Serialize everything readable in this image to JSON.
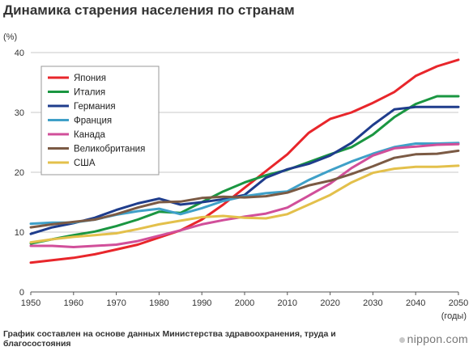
{
  "header": {
    "title": "Динамика старения населения по странам"
  },
  "footer": {
    "source": "График составлен на основе данных Министерства здравоохранения, труда и благосостояния",
    "brand": "nippon.com"
  },
  "chart_data": {
    "type": "line",
    "title": "Динамика старения населения по странам",
    "ylabel": "(%)",
    "xlabel": "(годы)",
    "ylim": [
      0,
      40
    ],
    "xlim": [
      1950,
      2050
    ],
    "xticks": [
      1950,
      1960,
      1970,
      1980,
      1990,
      2000,
      2010,
      2020,
      2030,
      2040,
      2050
    ],
    "yticks": [
      0,
      10,
      20,
      30,
      40
    ],
    "grid": "horizontal",
    "legend_position": "top-left",
    "series": [
      {
        "name": "Япония",
        "color": "#e8262b",
        "x": [
          1950,
          1955,
          1960,
          1965,
          1970,
          1975,
          1980,
          1985,
          1990,
          1995,
          2000,
          2005,
          2010,
          2015,
          2020,
          2025,
          2030,
          2035,
          2040,
          2045,
          2050
        ],
        "y": [
          4.9,
          5.3,
          5.7,
          6.3,
          7.1,
          7.9,
          9.1,
          10.3,
          12.1,
          14.6,
          17.4,
          20.2,
          23.0,
          26.6,
          28.9,
          30.0,
          31.6,
          33.4,
          36.1,
          37.7,
          38.8
        ]
      },
      {
        "name": "Италия",
        "color": "#1a9641",
        "x": [
          1950,
          1955,
          1960,
          1965,
          1970,
          1975,
          1980,
          1985,
          1990,
          1995,
          2000,
          2005,
          2010,
          2015,
          2020,
          2025,
          2030,
          2035,
          2040,
          2045,
          2050
        ],
        "y": [
          8.1,
          8.8,
          9.5,
          10.1,
          11.0,
          12.1,
          13.4,
          13.2,
          15.0,
          16.8,
          18.3,
          19.5,
          20.4,
          21.7,
          23.0,
          24.2,
          26.3,
          29.2,
          31.4,
          32.7,
          32.7
        ]
      },
      {
        "name": "Германия",
        "color": "#1f3d8c",
        "x": [
          1950,
          1955,
          1960,
          1965,
          1970,
          1975,
          1980,
          1985,
          1990,
          1995,
          2000,
          2005,
          2010,
          2015,
          2020,
          2025,
          2030,
          2035,
          2040,
          2045,
          2050
        ],
        "y": [
          9.7,
          10.8,
          11.5,
          12.4,
          13.7,
          14.8,
          15.6,
          14.6,
          15.0,
          15.5,
          16.2,
          19.1,
          20.5,
          21.4,
          22.8,
          24.9,
          27.9,
          30.5,
          30.9,
          30.9,
          30.9
        ]
      },
      {
        "name": "Франция",
        "color": "#3fa0c8",
        "x": [
          1950,
          1955,
          1960,
          1965,
          1970,
          1975,
          1980,
          1985,
          1990,
          1995,
          2000,
          2005,
          2010,
          2015,
          2020,
          2025,
          2030,
          2035,
          2040,
          2045,
          2050
        ],
        "y": [
          11.4,
          11.6,
          11.6,
          12.1,
          12.9,
          13.5,
          13.9,
          13.0,
          14.0,
          15.2,
          16.0,
          16.5,
          16.8,
          18.7,
          20.3,
          21.8,
          23.1,
          24.2,
          24.8,
          24.8,
          24.9
        ]
      },
      {
        "name": "Канада",
        "color": "#d14f9a",
        "x": [
          1950,
          1955,
          1960,
          1965,
          1970,
          1975,
          1980,
          1985,
          1990,
          1995,
          2000,
          2005,
          2010,
          2015,
          2020,
          2025,
          2030,
          2035,
          2040,
          2045,
          2050
        ],
        "y": [
          7.7,
          7.7,
          7.5,
          7.7,
          7.9,
          8.5,
          9.4,
          10.3,
          11.3,
          12.0,
          12.6,
          13.1,
          14.1,
          16.1,
          18.1,
          20.7,
          22.8,
          24.0,
          24.3,
          24.6,
          24.7
        ]
      },
      {
        "name": "Великобритания",
        "color": "#7b5a44",
        "x": [
          1950,
          1955,
          1960,
          1965,
          1970,
          1975,
          1980,
          1985,
          1990,
          1995,
          2000,
          2005,
          2010,
          2015,
          2020,
          2025,
          2030,
          2035,
          2040,
          2045,
          2050
        ],
        "y": [
          10.8,
          11.3,
          11.7,
          12.1,
          13.0,
          14.1,
          15.0,
          15.1,
          15.7,
          15.9,
          15.8,
          16.0,
          16.6,
          17.8,
          18.6,
          19.7,
          21.0,
          22.4,
          23.0,
          23.1,
          23.6
        ]
      },
      {
        "name": "США",
        "color": "#e3c04b",
        "x": [
          1950,
          1955,
          1960,
          1965,
          1970,
          1975,
          1980,
          1985,
          1990,
          1995,
          2000,
          2005,
          2010,
          2015,
          2020,
          2025,
          2030,
          2035,
          2040,
          2045,
          2050
        ],
        "y": [
          8.3,
          8.8,
          9.2,
          9.5,
          9.8,
          10.5,
          11.3,
          11.9,
          12.5,
          12.7,
          12.4,
          12.3,
          13.0,
          14.6,
          16.2,
          18.3,
          19.9,
          20.6,
          20.9,
          20.9,
          21.1
        ]
      }
    ]
  }
}
